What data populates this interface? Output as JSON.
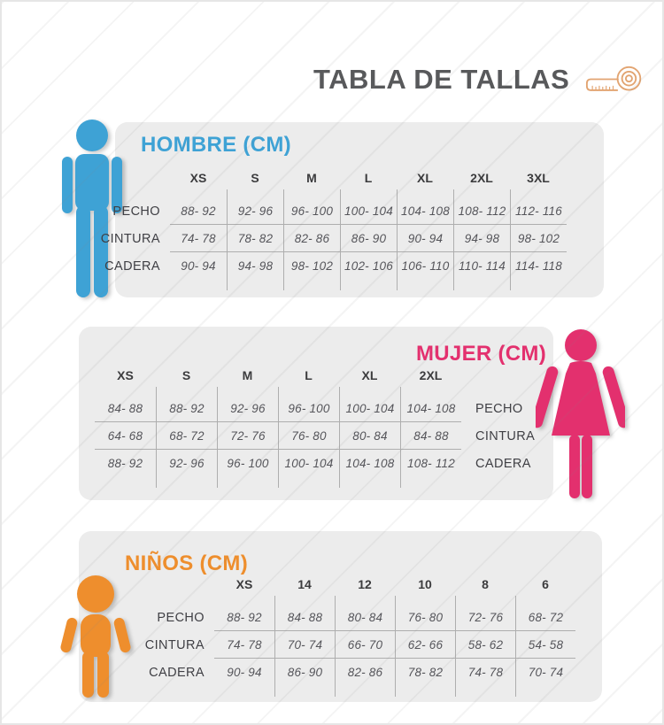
{
  "title": {
    "text": "TABLA DE TALLAS",
    "icon": "measuring-tape"
  },
  "colors": {
    "men_accent": "#3EA2D5",
    "women_accent": "#E3306E",
    "children_accent": "#EE8E2D",
    "panel_background": "#ECECEC",
    "title_text": "#58595B",
    "table_line": "#AEAEAE",
    "value_text": "#55555A"
  },
  "chart_data": [
    {
      "type": "table",
      "title": "HOMBRE (CM)",
      "group": "men",
      "labels_side": "left",
      "accent": "#3EA2D5",
      "figure": "man",
      "columns": [
        "XS",
        "S",
        "M",
        "L",
        "XL",
        "2XL",
        "3XL"
      ],
      "row_labels": [
        "PECHO",
        "CINTURA",
        "CADERA"
      ],
      "rows": [
        [
          "88- 92",
          "92- 96",
          "96- 100",
          "100- 104",
          "104- 108",
          "108- 112",
          "112- 116"
        ],
        [
          "74- 78",
          "78- 82",
          "82- 86",
          "86- 90",
          "90- 94",
          "94- 98",
          "98- 102"
        ],
        [
          "90- 94",
          "94- 98",
          "98- 102",
          "102- 106",
          "106- 110",
          "110- 114",
          "114- 118"
        ]
      ]
    },
    {
      "type": "table",
      "title": "MUJER (CM)",
      "group": "women",
      "labels_side": "right",
      "accent": "#E3306E",
      "figure": "woman",
      "columns": [
        "XS",
        "S",
        "M",
        "L",
        "XL",
        "2XL"
      ],
      "row_labels": [
        "PECHO",
        "CINTURA",
        "CADERA"
      ],
      "rows": [
        [
          "84- 88",
          "88- 92",
          "92- 96",
          "96- 100",
          "100- 104",
          "104- 108"
        ],
        [
          "64- 68",
          "68- 72",
          "72- 76",
          "76- 80",
          "80- 84",
          "84- 88"
        ],
        [
          "88- 92",
          "92- 96",
          "96- 100",
          "100- 104",
          "104- 108",
          "108- 112"
        ]
      ]
    },
    {
      "type": "table",
      "title": "NIÑOS (CM)",
      "group": "children",
      "labels_side": "left",
      "accent": "#EE8E2D",
      "figure": "child",
      "columns": [
        "XS",
        "14",
        "12",
        "10",
        "8",
        "6"
      ],
      "row_labels": [
        "PECHO",
        "CINTURA",
        "CADERA"
      ],
      "rows": [
        [
          "88- 92",
          "84- 88",
          "80- 84",
          "76- 80",
          "72- 76",
          "68- 72"
        ],
        [
          "74- 78",
          "70- 74",
          "66- 70",
          "62- 66",
          "58- 62",
          "54- 58"
        ],
        [
          "90- 94",
          "86- 90",
          "82- 86",
          "78- 82",
          "74- 78",
          "70- 74"
        ]
      ]
    }
  ]
}
